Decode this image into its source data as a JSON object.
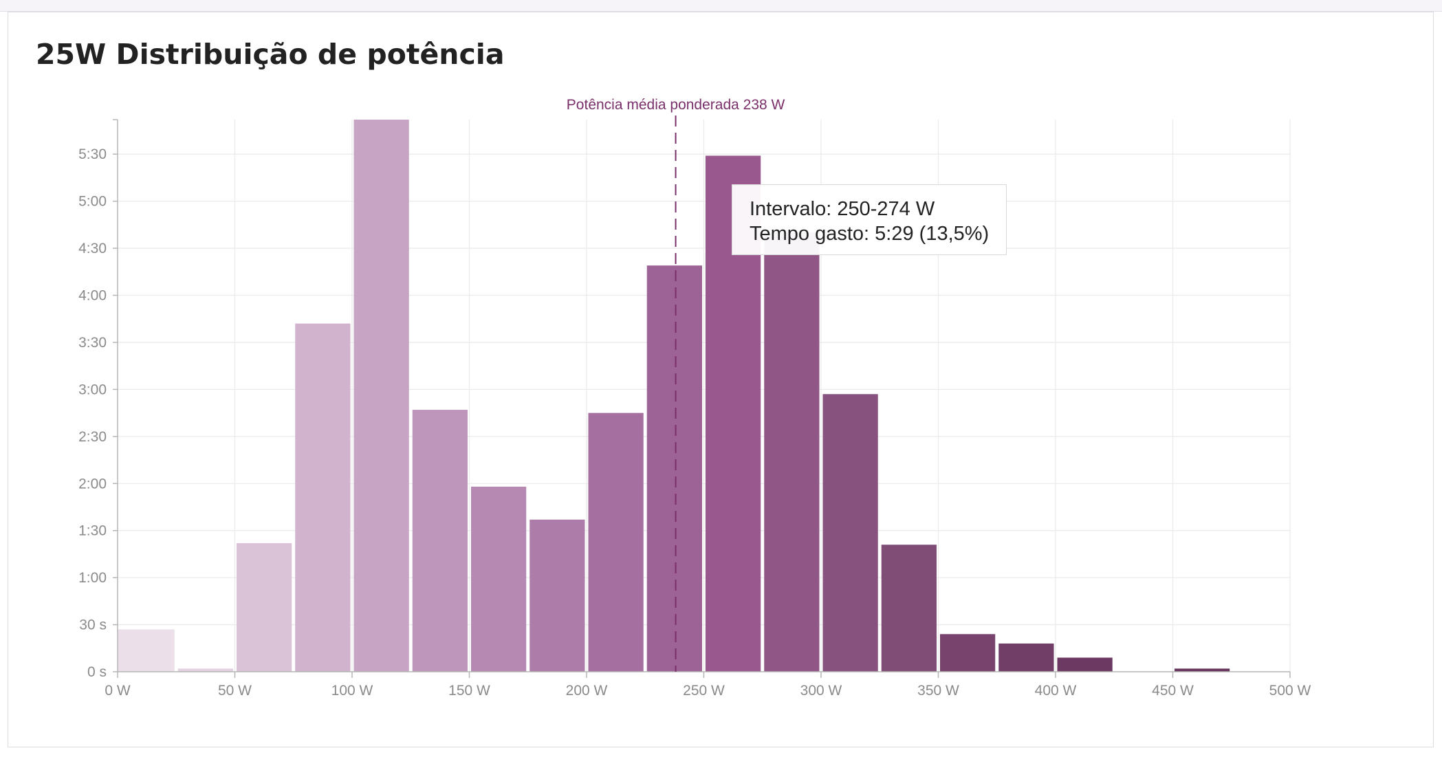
{
  "page": {
    "title": "25W Distribuição de potência"
  },
  "tooltip": {
    "line1": "Intervalo: 250-274 W",
    "line2": "Tempo gasto: 5:29 (13,5%)"
  },
  "chart_data": {
    "type": "bar",
    "title": "25W Distribuição de potência",
    "xlabel": "",
    "ylabel": "",
    "x_unit": "W",
    "bin_width_w": 25,
    "xlim": [
      0,
      500
    ],
    "x_ticks": [
      {
        "value": 0,
        "label": "0 W"
      },
      {
        "value": 50,
        "label": "50 W"
      },
      {
        "value": 100,
        "label": "100 W"
      },
      {
        "value": 150,
        "label": "150 W"
      },
      {
        "value": 200,
        "label": "200 W"
      },
      {
        "value": 250,
        "label": "250 W"
      },
      {
        "value": 300,
        "label": "300 W"
      },
      {
        "value": 350,
        "label": "350 W"
      },
      {
        "value": 400,
        "label": "400 W"
      },
      {
        "value": 450,
        "label": "450 W"
      },
      {
        "value": 500,
        "label": "500 W"
      }
    ],
    "ylim_seconds": [
      0,
      352
    ],
    "y_ticks": [
      {
        "value": 0,
        "label": "0 s"
      },
      {
        "value": 30,
        "label": "30 s"
      },
      {
        "value": 60,
        "label": "1:00"
      },
      {
        "value": 90,
        "label": "1:30"
      },
      {
        "value": 120,
        "label": "2:00"
      },
      {
        "value": 150,
        "label": "2:30"
      },
      {
        "value": 180,
        "label": "3:00"
      },
      {
        "value": 210,
        "label": "3:30"
      },
      {
        "value": 240,
        "label": "4:00"
      },
      {
        "value": 270,
        "label": "4:30"
      },
      {
        "value": 300,
        "label": "5:00"
      },
      {
        "value": 330,
        "label": "5:30"
      }
    ],
    "grid": true,
    "bins": [
      {
        "start": 0,
        "seconds": 27,
        "color": "#ebdfe9"
      },
      {
        "start": 25,
        "seconds": 2,
        "color": "#e3d1e0"
      },
      {
        "start": 50,
        "seconds": 82,
        "color": "#dbc3d7"
      },
      {
        "start": 75,
        "seconds": 222,
        "color": "#d1b3ce"
      },
      {
        "start": 100,
        "seconds": 352,
        "color": "#c8a4c4"
      },
      {
        "start": 125,
        "seconds": 167,
        "color": "#be96bb"
      },
      {
        "start": 150,
        "seconds": 118,
        "color": "#b589b1"
      },
      {
        "start": 175,
        "seconds": 97,
        "color": "#ad7ca8"
      },
      {
        "start": 200,
        "seconds": 165,
        "color": "#a56f9f"
      },
      {
        "start": 225,
        "seconds": 259,
        "color": "#9d6296"
      },
      {
        "start": 250,
        "seconds": 329,
        "color": "#99598f"
      },
      {
        "start": 275,
        "seconds": 280,
        "color": "#8f5686"
      },
      {
        "start": 300,
        "seconds": 177,
        "color": "#87527e"
      },
      {
        "start": 325,
        "seconds": 81,
        "color": "#804d77"
      },
      {
        "start": 350,
        "seconds": 24,
        "color": "#78446e"
      },
      {
        "start": 375,
        "seconds": 18,
        "color": "#713e67"
      },
      {
        "start": 400,
        "seconds": 9,
        "color": "#6c3962"
      },
      {
        "start": 425,
        "seconds": 0,
        "color": "#68365e"
      },
      {
        "start": 450,
        "seconds": 2,
        "color": "#65335b"
      },
      {
        "start": 475,
        "seconds": 0,
        "color": "#623158"
      }
    ],
    "annotations": [
      {
        "type": "vline",
        "x": 238,
        "label": "Potência média ponderada 238 W",
        "color": "#7a2f6a"
      }
    ]
  }
}
